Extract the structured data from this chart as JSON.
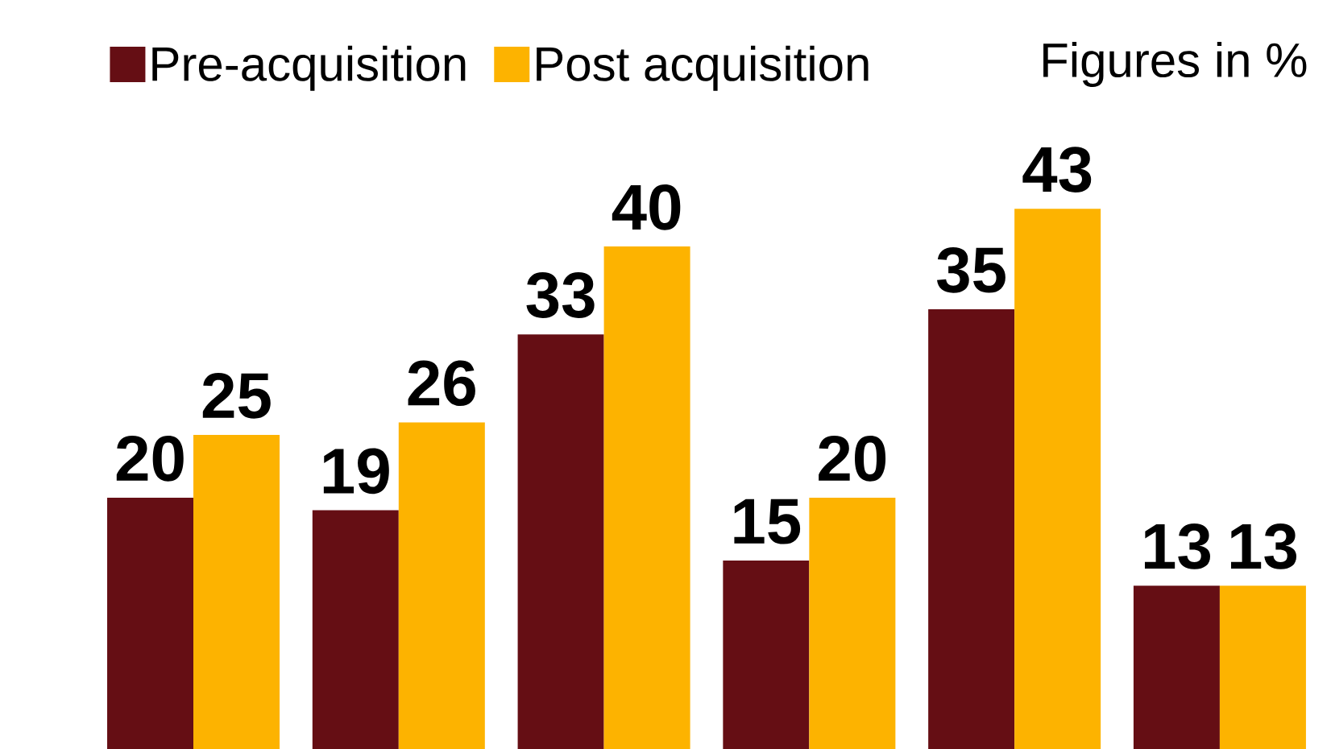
{
  "chart_data": {
    "type": "bar",
    "categories": [
      null,
      null,
      null,
      null,
      null,
      null
    ],
    "series": [
      {
        "name": "Pre-acquisition",
        "color": "#650e14",
        "values": [
          20,
          19,
          33,
          15,
          35,
          13
        ]
      },
      {
        "name": "Post acquisition",
        "color": "#fdb300",
        "values": [
          25,
          26,
          40,
          20,
          43,
          13
        ]
      }
    ],
    "data_labels": true,
    "legend": "top left",
    "annotations": [
      "Figures in %"
    ]
  }
}
